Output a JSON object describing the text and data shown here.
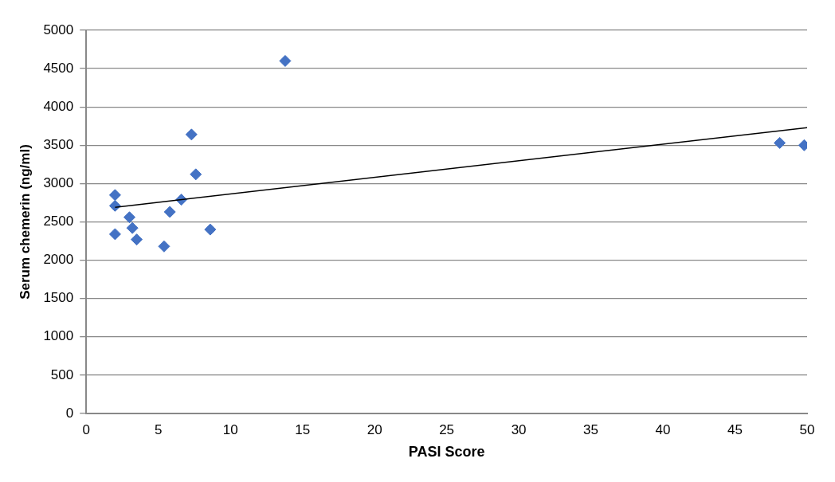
{
  "chart_data": {
    "type": "scatter",
    "xlabel": "PASI Score",
    "ylabel": "Serum chemerin (ng/ml)",
    "xlim": [
      0,
      50
    ],
    "xticks": [
      0,
      5,
      10,
      15,
      20,
      25,
      30,
      35,
      40,
      45,
      50
    ],
    "ylim": [
      0,
      5000
    ],
    "yticks": [
      0,
      500,
      1000,
      1500,
      2000,
      2500,
      3000,
      3500,
      4000,
      4500,
      5000
    ],
    "grid": "y",
    "marker": "diamond",
    "series": [
      {
        "color": "#4472c4",
        "x": [
          2.0,
          2.0,
          2.0,
          3.0,
          3.2,
          3.5,
          5.4,
          5.8,
          6.6,
          7.3,
          7.6,
          8.6,
          13.8,
          48.1,
          49.8
        ],
        "values": [
          2850,
          2710,
          2340,
          2560,
          2420,
          2270,
          2180,
          2630,
          2790,
          3640,
          3120,
          2400,
          4600,
          3530,
          3500
        ]
      },
      {
        "type": "line",
        "color": "#000000",
        "marker": "none",
        "x": [
          2,
          50
        ],
        "values": [
          2690,
          3730
        ]
      }
    ]
  }
}
